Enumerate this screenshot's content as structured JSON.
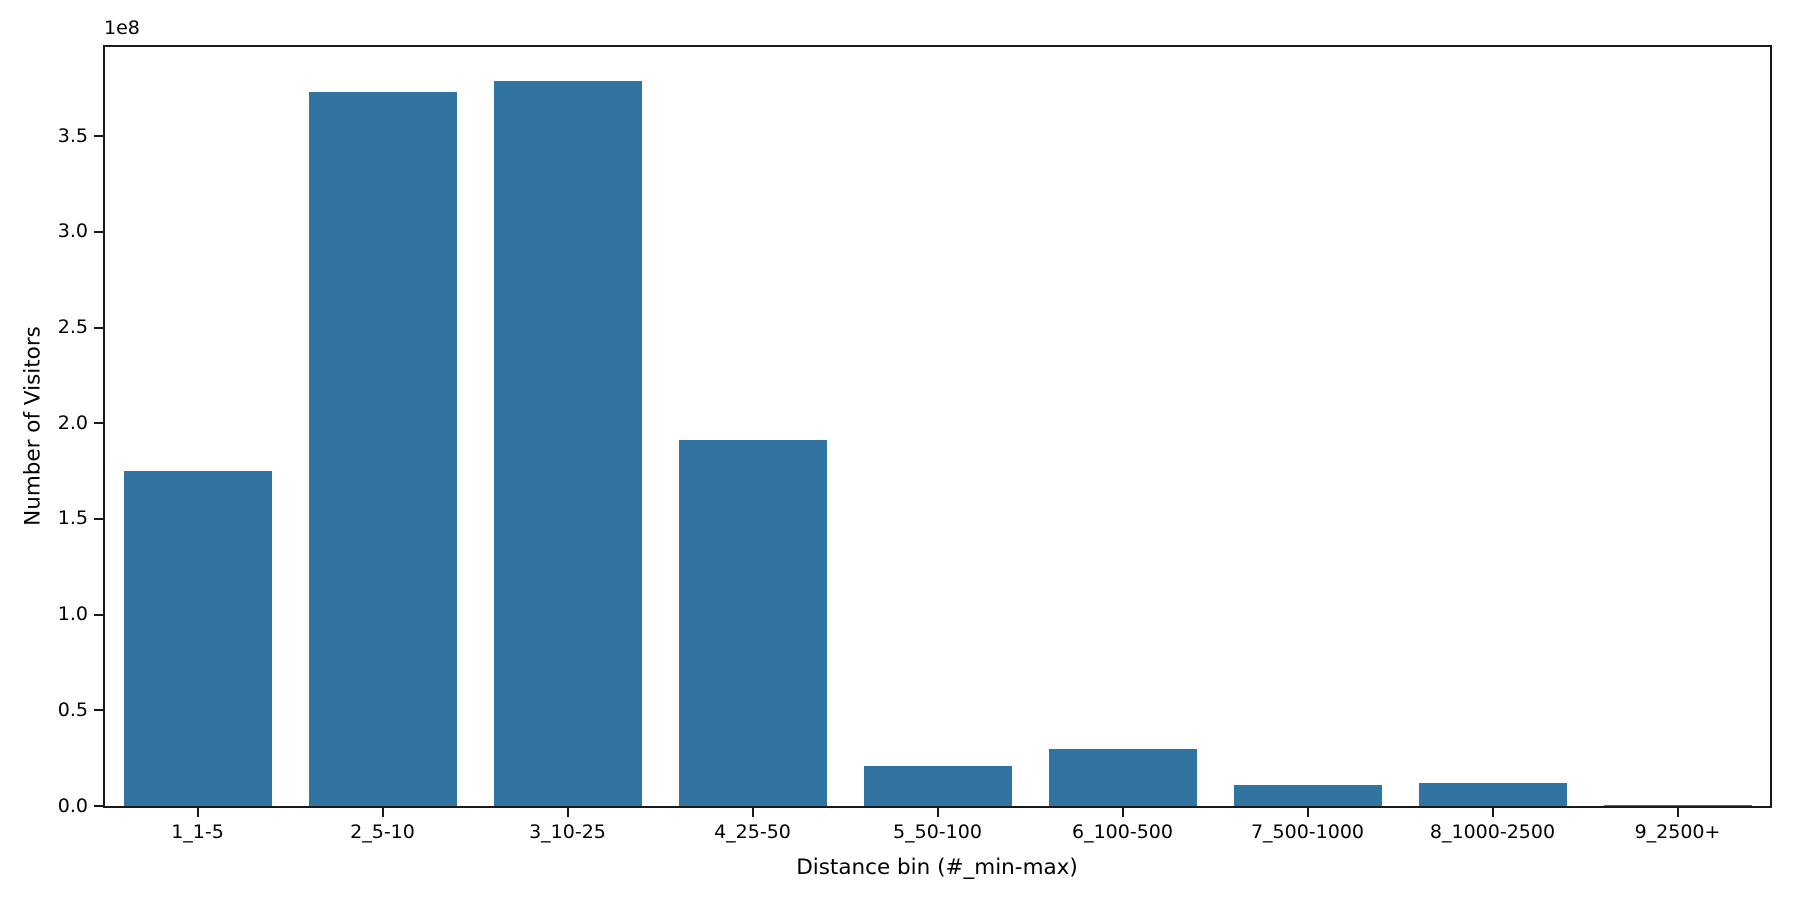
{
  "figure": {
    "background": "#ffffff",
    "xlabel": "Distance bin (#_min-max)",
    "ylabel": "Number of Visitors",
    "offset_label": "1e8"
  },
  "chart_data": {
    "type": "bar",
    "title": "",
    "xlabel": "Distance bin (#_min-max)",
    "ylabel": "Number of Visitors",
    "categories": [
      "1_1-5",
      "2_5-10",
      "3_10-25",
      "4_25-50",
      "5_50-100",
      "6_100-500",
      "7_500-1000",
      "8_1000-2500",
      "9_2500+"
    ],
    "values": [
      175000000,
      373000000,
      379000000,
      191000000,
      21000000,
      30000000,
      11000000,
      12000000,
      500000
    ],
    "values_1e8": [
      1.75,
      3.73,
      3.79,
      1.91,
      0.21,
      0.3,
      0.11,
      0.12,
      0.005
    ],
    "y_offset_text": "1e8",
    "ytick_labels": [
      "0.0",
      "0.5",
      "1.0",
      "1.5",
      "2.0",
      "2.5",
      "3.0",
      "3.5"
    ],
    "yticks_1e8": [
      0.0,
      0.5,
      1.0,
      1.5,
      2.0,
      2.5,
      3.0,
      3.5
    ],
    "ylim_1e8": [
      0,
      3.966
    ],
    "ylim": [
      0,
      396600000
    ],
    "bar_color": "#3274a1",
    "bar_width_fraction": 0.8,
    "grid": false,
    "legend": null,
    "spine_color": "#1a1a1a"
  }
}
